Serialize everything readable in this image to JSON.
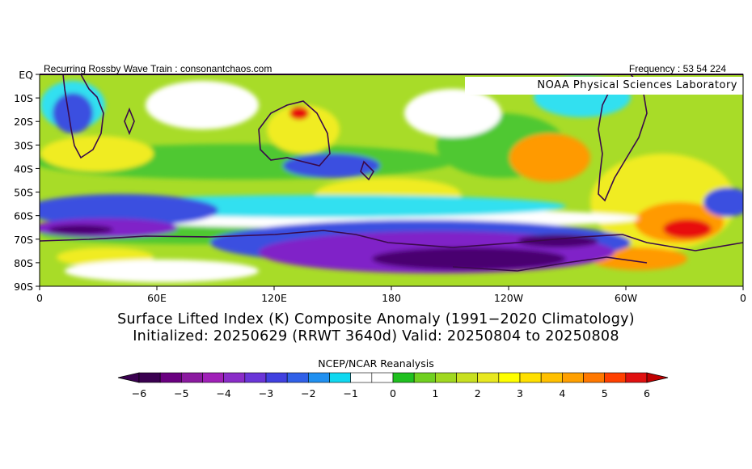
{
  "header": {
    "left": "Recurring Rossby Wave Train : consonantchaos.com",
    "right": "Frequency : 53 54 224"
  },
  "map": {
    "credit": "NOAA Physical Sciences Laboratory",
    "lat_labels": [
      "EQ",
      "10S",
      "20S",
      "30S",
      "40S",
      "50S",
      "60S",
      "70S",
      "80S",
      "90S"
    ],
    "lon_labels": [
      "0",
      "60E",
      "120E",
      "180",
      "120W",
      "60W",
      "0"
    ]
  },
  "title": {
    "line1": "Surface Lifted Index (K) Composite Anomaly (1991−2020 Climatology)",
    "line2": "Initialized: 20250629 (RRWT 3640d) Valid: 20250804 to 20250808"
  },
  "colorbar": {
    "title": "NCEP/NCAR Reanalysis",
    "colors": [
      "#3a0050",
      "#6a0080",
      "#8b1aa0",
      "#a020b8",
      "#8a2cc8",
      "#6a35d8",
      "#4040e0",
      "#3060e8",
      "#2090f0",
      "#10d8f0",
      "#ffffff",
      "#ffffff",
      "#20c020",
      "#70d020",
      "#a0d820",
      "#c8e020",
      "#e8e820",
      "#ffff00",
      "#ffe000",
      "#ffc000",
      "#ffa000",
      "#ff7800",
      "#ff4000",
      "#e01010"
    ],
    "tick_labels": [
      "−6",
      "−5",
      "−4",
      "−3",
      "−2",
      "−1",
      "0",
      "1",
      "2",
      "3",
      "4",
      "5",
      "6"
    ]
  },
  "palette": {
    "green": "#50c830",
    "lime": "#a8dc28",
    "yellow": "#f0ec20",
    "orange": "#ff9a00",
    "red": "#e81010",
    "cyan": "#30e0f0",
    "blue": "#3a50e0",
    "purple": "#8020c8",
    "deep_purple": "#4a0070",
    "coast": "#3a0a4a"
  }
}
